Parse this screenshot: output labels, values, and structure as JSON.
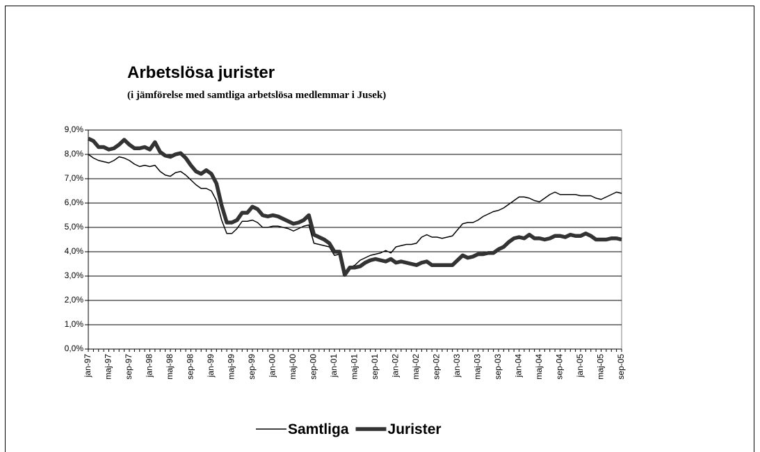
{
  "chart_data": {
    "type": "line",
    "title": "Arbetslösa jurister",
    "subtitle": "(i jämförelse med samtliga arbetslösa medlemmar i Jusek)",
    "categories": [
      "jan-97",
      null,
      null,
      null,
      "maj-97",
      null,
      null,
      null,
      "sep-97",
      null,
      null,
      null,
      "jan-98",
      null,
      null,
      null,
      "maj-98",
      null,
      null,
      null,
      "sep-98",
      null,
      null,
      null,
      "jan-99",
      null,
      null,
      null,
      "maj-99",
      null,
      null,
      null,
      "sep-99",
      null,
      null,
      null,
      "jan-00",
      null,
      null,
      null,
      "maj-00",
      null,
      null,
      null,
      "sep-00",
      null,
      null,
      null,
      "jan-01",
      null,
      null,
      null,
      "maj-01",
      null,
      null,
      null,
      "sep-01",
      null,
      null,
      null,
      "jan-02",
      null,
      null,
      null,
      "maj-02",
      null,
      null,
      null,
      "sep-02",
      null,
      null,
      null,
      "jan-03",
      null,
      null,
      null,
      "maj-03",
      null,
      null,
      null,
      "sep-03",
      null,
      null,
      null,
      "jan-04",
      null,
      null,
      null,
      "maj-04",
      null,
      null,
      null,
      "sep-04",
      null,
      null,
      null,
      "jan-05",
      null,
      null,
      null,
      "maj-05",
      null,
      null,
      null,
      "sep-05"
    ],
    "series": [
      {
        "name": "Samtliga",
        "color": "#000000",
        "width": 1.5,
        "values": [
          8.0,
          7.85,
          7.75,
          7.7,
          7.65,
          7.75,
          7.9,
          7.85,
          7.75,
          7.6,
          7.5,
          7.55,
          7.5,
          7.55,
          7.3,
          7.15,
          7.1,
          7.25,
          7.3,
          7.15,
          6.95,
          6.75,
          6.6,
          6.6,
          6.5,
          6.1,
          5.3,
          4.75,
          4.75,
          4.95,
          5.25,
          5.25,
          5.3,
          5.2,
          5.0,
          5.0,
          5.05,
          5.05,
          5.0,
          4.95,
          4.85,
          4.95,
          5.05,
          5.1,
          4.35,
          4.3,
          4.25,
          4.2,
          3.85,
          3.9,
          3.05,
          3.35,
          3.45,
          3.65,
          3.75,
          3.85,
          3.9,
          3.95,
          4.05,
          3.95,
          4.2,
          4.25,
          4.3,
          4.3,
          4.35,
          4.6,
          4.7,
          4.6,
          4.6,
          4.55,
          4.6,
          4.65,
          4.9,
          5.15,
          5.2,
          5.2,
          5.3,
          5.45,
          5.55,
          5.65,
          5.7,
          5.8,
          5.95,
          6.1,
          6.25,
          6.25,
          6.2,
          6.1,
          6.05,
          6.2,
          6.35,
          6.45,
          6.35,
          6.35,
          6.35,
          6.35,
          6.3,
          6.3,
          6.3,
          6.2,
          6.15,
          6.25,
          6.35,
          6.45,
          6.4
        ]
      },
      {
        "name": "Jurister",
        "color": "#333333",
        "width": 5.5,
        "values": [
          8.65,
          8.55,
          8.3,
          8.3,
          8.2,
          8.25,
          8.4,
          8.6,
          8.4,
          8.25,
          8.25,
          8.3,
          8.2,
          8.5,
          8.1,
          7.95,
          7.9,
          8.0,
          8.05,
          7.85,
          7.55,
          7.3,
          7.2,
          7.35,
          7.2,
          6.8,
          5.9,
          5.2,
          5.2,
          5.3,
          5.6,
          5.6,
          5.85,
          5.75,
          5.5,
          5.45,
          5.5,
          5.45,
          5.35,
          5.25,
          5.15,
          5.2,
          5.3,
          5.5,
          4.7,
          4.6,
          4.5,
          4.35,
          4.0,
          4.0,
          3.05,
          3.35,
          3.35,
          3.4,
          3.55,
          3.65,
          3.7,
          3.65,
          3.6,
          3.7,
          3.55,
          3.6,
          3.55,
          3.5,
          3.45,
          3.55,
          3.6,
          3.45,
          3.45,
          3.45,
          3.45,
          3.45,
          3.65,
          3.85,
          3.75,
          3.8,
          3.9,
          3.9,
          3.95,
          3.95,
          4.1,
          4.2,
          4.4,
          4.55,
          4.6,
          4.55,
          4.7,
          4.55,
          4.55,
          4.5,
          4.55,
          4.65,
          4.65,
          4.6,
          4.7,
          4.65,
          4.65,
          4.75,
          4.65,
          4.5,
          4.5,
          4.5,
          4.55,
          4.55,
          4.5
        ]
      }
    ],
    "ylim": [
      0,
      9
    ],
    "yticks": [
      {
        "value": 0,
        "label": "0,0%"
      },
      {
        "value": 1,
        "label": "1,0%"
      },
      {
        "value": 2,
        "label": "2,0%"
      },
      {
        "value": 3,
        "label": "3,0%"
      },
      {
        "value": 4,
        "label": "4,0%"
      },
      {
        "value": 5,
        "label": "5,0%"
      },
      {
        "value": 6,
        "label": "6,0%"
      },
      {
        "value": 7,
        "label": "7,0%"
      },
      {
        "value": 8,
        "label": "8,0%"
      },
      {
        "value": 9,
        "label": "9,0%"
      }
    ],
    "grid": true,
    "legend": "bottom"
  }
}
